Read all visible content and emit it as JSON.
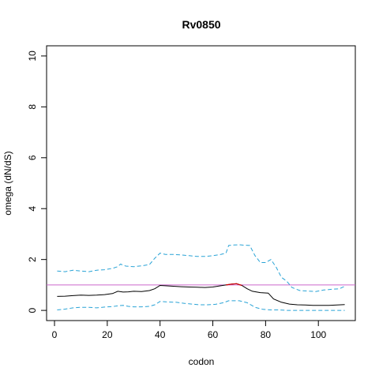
{
  "chart_data": {
    "type": "line",
    "title": "Rv0850",
    "xlabel": "codon",
    "ylabel": "omega (dN/dS)",
    "xlim": [
      -3,
      114
    ],
    "ylim": [
      -0.4,
      10.4
    ],
    "xticks": [
      0,
      20,
      40,
      60,
      80,
      100
    ],
    "yticks": [
      0,
      2,
      4,
      6,
      8,
      10
    ],
    "reference_line": {
      "y": 1,
      "color": "#cc66cc"
    },
    "colors": {
      "omega": "#000000",
      "highlight": "#cc0000",
      "ci": "#29a3d6"
    },
    "series": [
      {
        "role": "omega",
        "x": [
          1,
          4,
          7,
          10,
          13,
          16,
          19,
          22,
          24,
          26,
          28,
          30,
          33,
          36,
          38,
          40,
          42,
          45,
          48,
          51,
          54,
          57,
          60,
          63,
          65,
          67,
          69,
          71,
          73,
          75,
          78,
          81,
          83,
          86,
          89,
          92,
          95,
          98,
          101,
          104,
          107,
          110
        ],
        "y": [
          0.55,
          0.56,
          0.58,
          0.6,
          0.59,
          0.6,
          0.62,
          0.66,
          0.75,
          0.72,
          0.73,
          0.75,
          0.74,
          0.78,
          0.85,
          0.98,
          0.97,
          0.95,
          0.93,
          0.92,
          0.91,
          0.9,
          0.92,
          0.97,
          1.0,
          1.03,
          1.05,
          0.98,
          0.85,
          0.75,
          0.7,
          0.68,
          0.45,
          0.32,
          0.25,
          0.22,
          0.21,
          0.2,
          0.2,
          0.2,
          0.21,
          0.23
        ]
      },
      {
        "role": "highlight",
        "x": [
          65,
          67,
          69,
          71
        ],
        "y": [
          1.0,
          1.03,
          1.05,
          0.98
        ]
      },
      {
        "role": "ci_upper",
        "x": [
          1,
          4,
          7,
          10,
          13,
          16,
          19,
          22,
          24,
          25,
          27,
          30,
          33,
          36,
          38,
          40,
          42,
          45,
          48,
          51,
          54,
          57,
          60,
          63,
          65,
          66,
          68,
          70,
          72,
          74,
          76,
          78,
          80,
          82,
          84,
          86,
          88,
          90,
          93,
          96,
          99,
          102,
          105,
          108,
          110
        ],
        "y": [
          1.55,
          1.52,
          1.58,
          1.55,
          1.52,
          1.58,
          1.6,
          1.65,
          1.72,
          1.82,
          1.74,
          1.72,
          1.75,
          1.8,
          2.05,
          2.25,
          2.2,
          2.2,
          2.18,
          2.15,
          2.12,
          2.12,
          2.15,
          2.2,
          2.25,
          2.55,
          2.57,
          2.58,
          2.56,
          2.55,
          2.15,
          1.88,
          1.88,
          2.0,
          1.7,
          1.3,
          1.15,
          0.9,
          0.78,
          0.76,
          0.74,
          0.8,
          0.83,
          0.85,
          0.95
        ]
      },
      {
        "role": "ci_lower",
        "x": [
          1,
          4,
          7,
          10,
          13,
          16,
          19,
          22,
          24,
          26,
          28,
          30,
          33,
          36,
          38,
          40,
          43,
          46,
          49,
          52,
          55,
          58,
          61,
          64,
          66,
          70,
          73,
          76,
          79,
          82,
          85,
          88,
          91,
          94,
          97,
          100,
          103,
          106,
          110
        ],
        "y": [
          0.02,
          0.05,
          0.1,
          0.12,
          0.12,
          0.1,
          0.13,
          0.15,
          0.18,
          0.2,
          0.16,
          0.14,
          0.14,
          0.16,
          0.22,
          0.35,
          0.33,
          0.32,
          0.28,
          0.25,
          0.22,
          0.22,
          0.24,
          0.3,
          0.38,
          0.38,
          0.3,
          0.12,
          0.04,
          0.02,
          0.02,
          0.0,
          0.0,
          0.0,
          0.0,
          0.0,
          0.0,
          0.0,
          0.0
        ]
      }
    ]
  }
}
